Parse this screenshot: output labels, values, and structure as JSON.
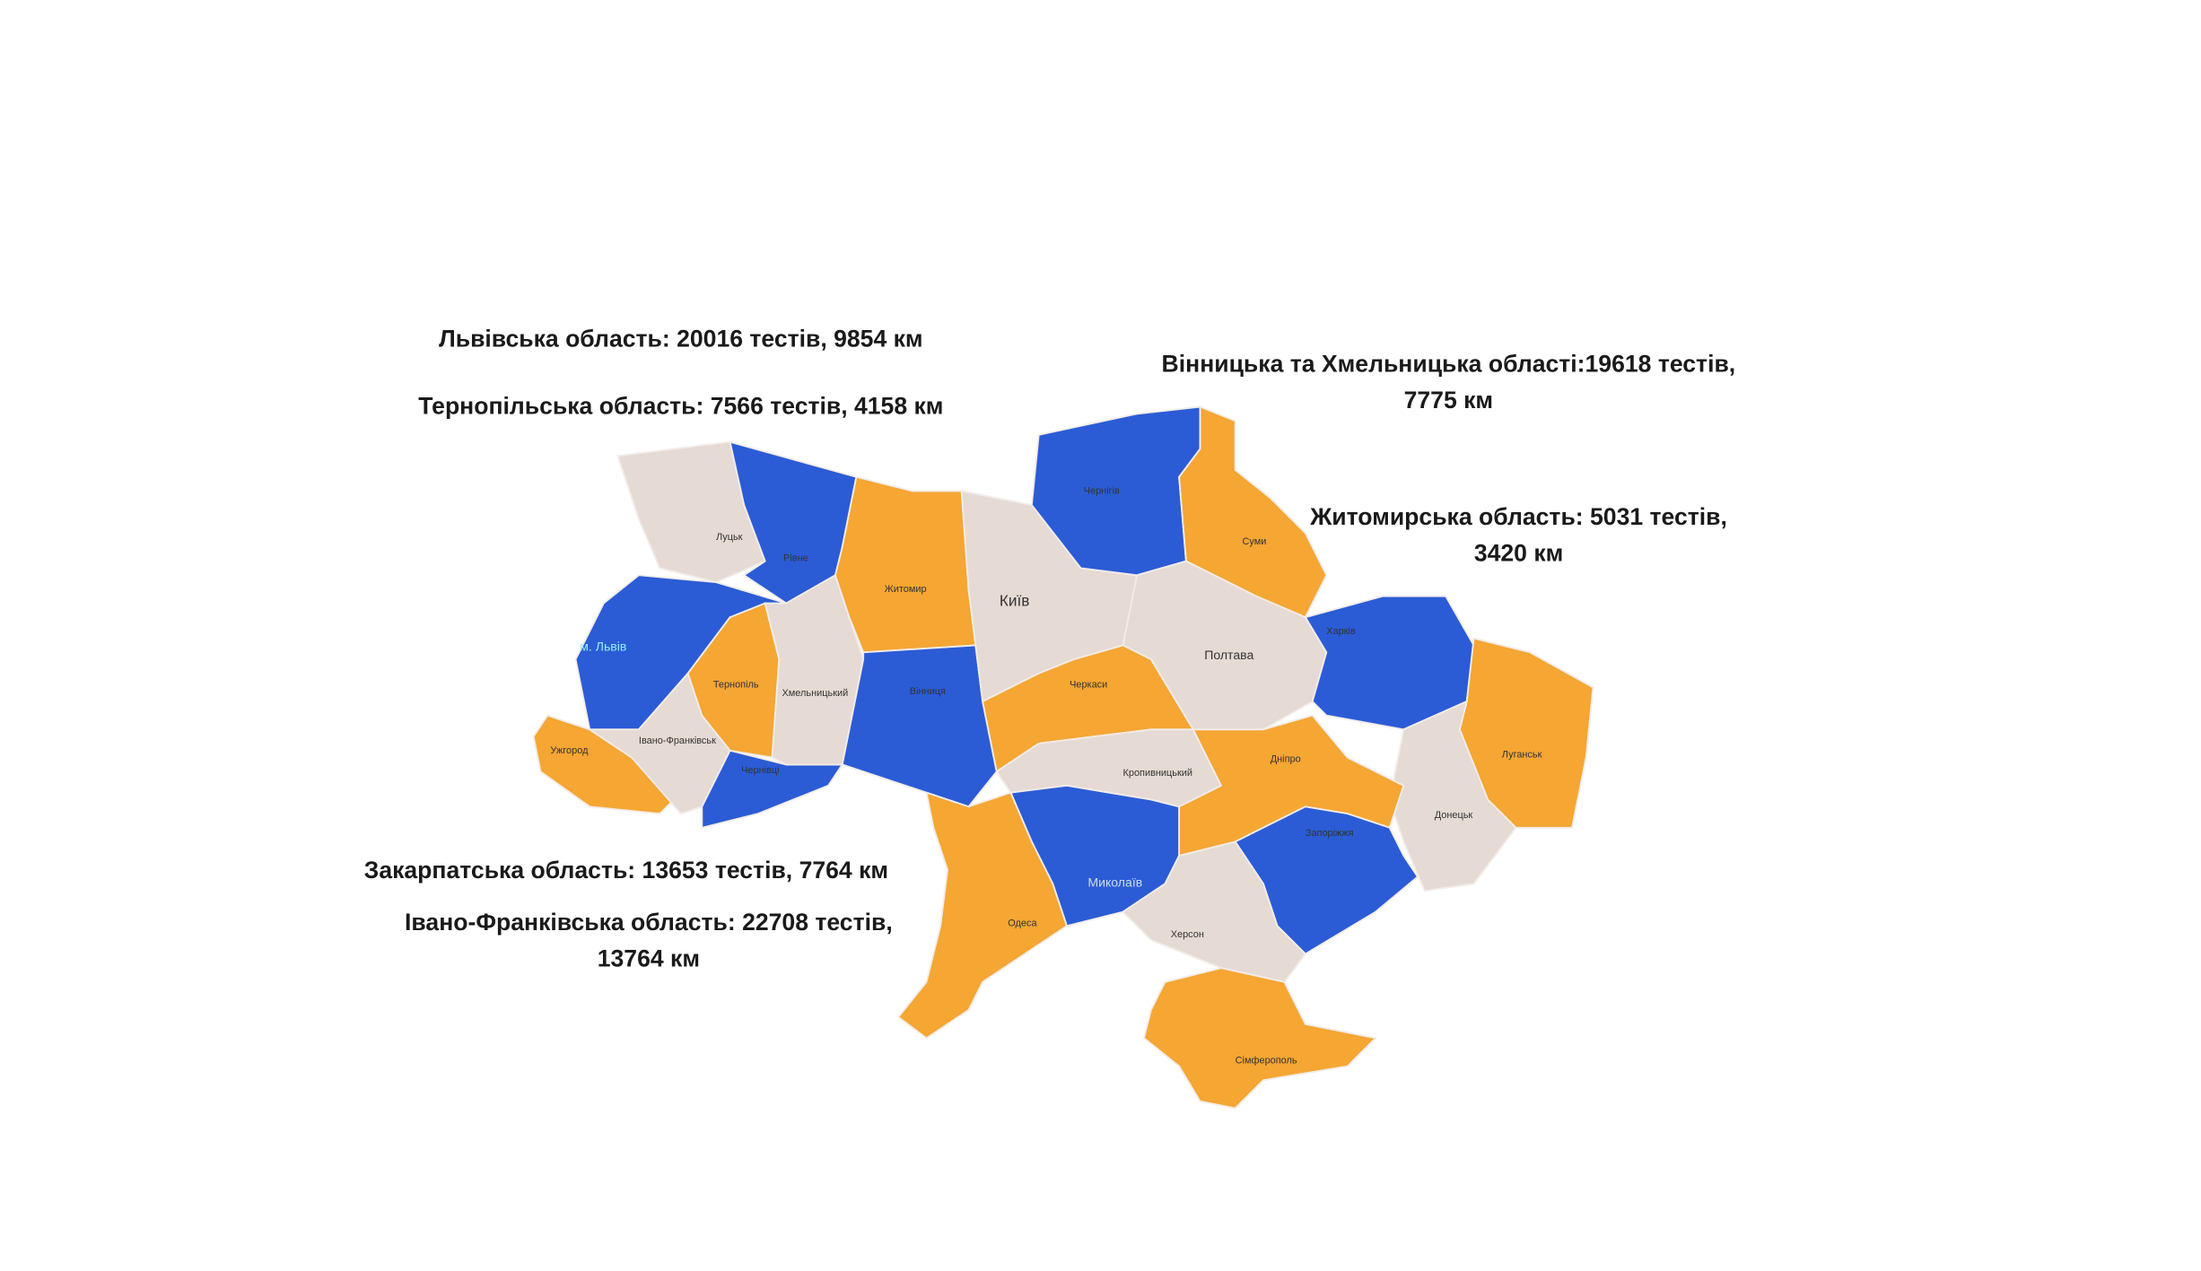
{
  "annotations": [
    {
      "lines": [
        "Львівська область: 20016 тестів, 9854 км"
      ]
    },
    {
      "lines": [
        "Тернопільська область: 7566 тестів, 4158 км"
      ]
    },
    {
      "lines": [
        "Вінницька та Хмельницька області:19618 тестів,",
        "7775 км"
      ]
    },
    {
      "lines": [
        "Житомирська область: 5031 тестів,",
        "3420 км"
      ]
    },
    {
      "lines": [
        "Закарпатська область: 13653 тестів, 7764 км"
      ]
    },
    {
      "lines": [
        "Івано-Франківська область: 22708 тестів,",
        "13764 км"
      ]
    }
  ],
  "map_labels": [
    "Луцьк",
    "Рівне",
    "м. Львів",
    "Тернопіль",
    "Хмельницький",
    "Житомир",
    "Київ",
    "Вінниця",
    "Чернігів",
    "Суми",
    "Полтава",
    "Харків",
    "Черкаси",
    "Кропивницький",
    "Дніпро",
    "Луганськ",
    "Донецьк",
    "Запоріжжя",
    "Миколаїв",
    "Одеса",
    "Херсон",
    "Сімферополь",
    "Ужгород",
    "Івано-Франківськ",
    "Чернівці"
  ]
}
